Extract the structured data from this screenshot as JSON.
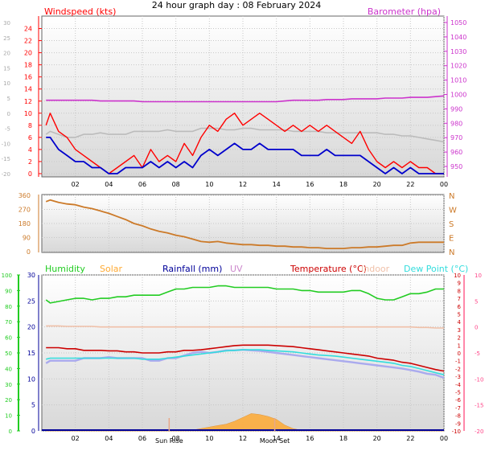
{
  "title": "24 hour graph day : 08 February 2024",
  "colors": {
    "windspeed": "#ff0000",
    "gust_avg": "#0000cc",
    "barometer": "#cc33cc",
    "wind_direction": "#cc7a29",
    "humidity": "#22cc22",
    "solar": "#ffaa33",
    "rainfall": "#000099",
    "uv": "#cc88cc",
    "temperature": "#cc0000",
    "indoor": "#f0c0a8",
    "dewpoint": "#33dddd",
    "feels": "#aaaaee",
    "extra_series": "#bbbbbb"
  },
  "chart_data": [
    {
      "type": "line",
      "legend": [
        "Windspeed (kts)",
        "Barometer (hpa)"
      ],
      "x_ticks": [
        "02",
        "04",
        "06",
        "08",
        "10",
        "12",
        "14",
        "16",
        "18",
        "20",
        "22",
        "00"
      ],
      "xlim": [
        0,
        24
      ],
      "left_far_ticks": [
        "30",
        "25",
        "20",
        "15",
        "10",
        "5",
        "0",
        "-5",
        "-10",
        "-15",
        "-20"
      ],
      "wind_ticks": [
        "24",
        "22",
        "20",
        "18",
        "16",
        "14",
        "12",
        "10",
        "8",
        "6",
        "4",
        "2",
        "0"
      ],
      "wind_ylim": [
        0,
        25
      ],
      "baro_ticks": [
        "1050",
        "1040",
        "1030",
        "1020",
        "1010",
        "1000",
        "990",
        "980",
        "970",
        "960",
        "950"
      ],
      "baro_ylim": [
        945,
        1050
      ],
      "x": [
        0.25,
        0.5,
        1,
        1.5,
        2,
        2.5,
        3,
        3.5,
        4,
        4.5,
        5,
        5.5,
        6,
        6.5,
        7,
        7.5,
        8,
        8.5,
        9,
        9.5,
        10,
        10.5,
        11,
        11.5,
        12,
        12.5,
        13,
        13.5,
        14,
        14.5,
        15,
        15.5,
        16,
        16.5,
        17,
        17.5,
        18,
        18.5,
        19,
        19.5,
        20,
        20.5,
        21,
        21.5,
        22,
        22.5,
        23,
        23.5,
        24
      ],
      "series": [
        {
          "name": "Windspeed (kts)",
          "values": [
            8,
            10,
            7,
            6,
            4,
            3,
            2,
            1,
            0,
            1,
            2,
            3,
            1,
            4,
            2,
            3,
            2,
            5,
            3,
            6,
            8,
            7,
            9,
            10,
            8,
            9,
            10,
            9,
            8,
            7,
            8,
            7,
            8,
            7,
            8,
            7,
            6,
            5,
            7,
            4,
            2,
            1,
            2,
            1,
            2,
            1,
            1,
            0,
            0
          ]
        },
        {
          "name": "gust average",
          "values": [
            6,
            6,
            4,
            3,
            2,
            2,
            1,
            1,
            0,
            0,
            1,
            1,
            1,
            2,
            1,
            2,
            1,
            2,
            1,
            3,
            4,
            3,
            4,
            5,
            4,
            4,
            5,
            4,
            4,
            4,
            4,
            3,
            3,
            3,
            4,
            3,
            3,
            3,
            3,
            2,
            1,
            0,
            1,
            0,
            1,
            0,
            0,
            0,
            0
          ]
        },
        {
          "name": "Barometer (hpa)",
          "values": [
            996,
            996,
            996,
            996,
            996,
            996,
            996,
            995.5,
            995.5,
            995.5,
            995.5,
            995.5,
            995,
            995,
            995,
            995,
            995,
            995,
            995,
            995,
            995,
            995,
            995,
            995,
            995,
            995,
            995,
            995,
            995,
            995.5,
            996,
            996,
            996,
            996,
            996.5,
            996.5,
            996.5,
            997,
            997,
            997,
            997,
            997.5,
            997.5,
            997.5,
            998,
            998,
            998,
            998.5,
            999
          ]
        },
        {
          "name": "extra",
          "values": [
            -7,
            -6,
            -7,
            -8,
            -8,
            -7,
            -7,
            -6.5,
            -7,
            -7,
            -7,
            -6,
            -6,
            -6,
            -6,
            -5.5,
            -6,
            -6,
            -6,
            -5,
            -5,
            -5,
            -5.5,
            -5.5,
            -5,
            -5,
            -5.5,
            -5.5,
            -5.5,
            -5.5,
            -6,
            -6,
            -6,
            -6,
            -6.5,
            -6.5,
            -6.5,
            -6.5,
            -6.5,
            -6.5,
            -6.5,
            -7,
            -7,
            -7.5,
            -7.5,
            -8,
            -8.5,
            -9,
            -9.5
          ]
        }
      ]
    },
    {
      "type": "line",
      "x_ticks": [
        "02",
        "04",
        "06",
        "08",
        "10",
        "12",
        "14",
        "16",
        "18",
        "20",
        "22",
        "00"
      ],
      "xlim": [
        0,
        24
      ],
      "ylim": [
        0,
        360
      ],
      "left_ticks": [
        "360",
        "270",
        "180",
        "90",
        "0"
      ],
      "right_ticks": [
        "N",
        "W",
        "S",
        "E",
        "N"
      ],
      "x": [
        0.25,
        0.5,
        1,
        1.5,
        2,
        2.5,
        3,
        3.5,
        4,
        4.5,
        5,
        5.5,
        6,
        6.5,
        7,
        7.5,
        8,
        8.5,
        9,
        9.5,
        10,
        10.5,
        11,
        11.5,
        12,
        12.5,
        13,
        13.5,
        14,
        14.5,
        15,
        15.5,
        16,
        16.5,
        17,
        17.5,
        18,
        18.5,
        19,
        19.5,
        20,
        20.5,
        21,
        21.5,
        22,
        22.5,
        23,
        23.5,
        24
      ],
      "series": [
        {
          "name": "wind direction",
          "values": [
            320,
            330,
            315,
            305,
            300,
            285,
            275,
            260,
            245,
            225,
            205,
            180,
            165,
            145,
            130,
            120,
            105,
            95,
            80,
            65,
            60,
            65,
            55,
            50,
            45,
            45,
            40,
            40,
            35,
            35,
            30,
            30,
            25,
            25,
            20,
            20,
            20,
            25,
            25,
            30,
            30,
            35,
            40,
            40,
            55,
            60,
            60,
            60,
            60
          ]
        }
      ]
    },
    {
      "type": "line",
      "legend": [
        "Humidity",
        "Solar",
        "Rainfall (mm)",
        "UV",
        "Temperature (°C)",
        "Indoor",
        "Dew Point (°C)"
      ],
      "x_ticks": [
        "02",
        "04",
        "06",
        "08",
        "10",
        "12",
        "14",
        "16",
        "18",
        "20",
        "22",
        "00"
      ],
      "xlim": [
        0,
        24
      ],
      "humidity_ticks": [
        "100",
        "90",
        "80",
        "70",
        "60",
        "50",
        "40",
        "30",
        "20",
        "10",
        "0"
      ],
      "humidity_ylim": [
        0,
        100
      ],
      "rain_ticks": [
        "30",
        "25",
        "20",
        "15",
        "10",
        "5",
        "0"
      ],
      "temp_ticks": [
        "10",
        "9",
        "8",
        "7",
        "6",
        "5",
        "4",
        "3",
        "2",
        "1",
        "0",
        "-1",
        "-2",
        "-3",
        "-4",
        "-5",
        "-6",
        "-7",
        "-8",
        "-9",
        "-10"
      ],
      "temp_ylim": [
        -20,
        10
      ],
      "temp_major_ticks": [
        "10",
        "5",
        "0",
        "-5",
        "-10",
        "-15",
        "-20"
      ],
      "x": [
        0.25,
        0.5,
        1,
        1.5,
        2,
        2.5,
        3,
        3.5,
        4,
        4.5,
        5,
        5.5,
        6,
        6.5,
        7,
        7.5,
        8,
        8.5,
        9,
        9.5,
        10,
        10.5,
        11,
        11.5,
        12,
        12.5,
        13,
        13.5,
        14,
        14.5,
        15,
        15.5,
        16,
        16.5,
        17,
        17.5,
        18,
        18.5,
        19,
        19.5,
        20,
        20.5,
        21,
        21.5,
        22,
        22.5,
        23,
        23.5,
        24
      ],
      "sun_events": [
        {
          "label": "Sun Rise",
          "x": 7.6
        },
        {
          "label": "Moon Set",
          "x": 13.9
        }
      ],
      "series": [
        {
          "name": "Humidity",
          "values": [
            84,
            82,
            83,
            84,
            85,
            85,
            84,
            85,
            85,
            86,
            86,
            87,
            87,
            87,
            87,
            89,
            91,
            91,
            92,
            92,
            92,
            93,
            93,
            92,
            92,
            92,
            92,
            92,
            91,
            91,
            91,
            90,
            90,
            89,
            89,
            89,
            89,
            90,
            90,
            88,
            85,
            84,
            84,
            86,
            88,
            88,
            89,
            91,
            91
          ]
        },
        {
          "name": "Temperature (°C)",
          "values": [
            -4,
            -4,
            -4,
            -4.2,
            -4.2,
            -4.5,
            -4.5,
            -4.5,
            -4.6,
            -4.6,
            -4.8,
            -4.8,
            -5,
            -5,
            -5,
            -4.8,
            -4.8,
            -4.5,
            -4.5,
            -4.4,
            -4.2,
            -4,
            -3.8,
            -3.6,
            -3.5,
            -3.5,
            -3.5,
            -3.5,
            -3.6,
            -3.7,
            -3.8,
            -4,
            -4.2,
            -4.4,
            -4.6,
            -4.8,
            -5,
            -5.2,
            -5.4,
            -5.6,
            -6,
            -6.2,
            -6.4,
            -6.8,
            -7,
            -7.4,
            -7.8,
            -8.2,
            -8.5
          ]
        },
        {
          "name": "Dew Point (°C)",
          "values": [
            -6.2,
            -6,
            -6,
            -6,
            -6,
            -6,
            -6,
            -6,
            -6,
            -6,
            -6,
            -6,
            -6.2,
            -6.2,
            -6.2,
            -6,
            -5.8,
            -5.6,
            -5.4,
            -5.2,
            -5,
            -4.8,
            -4.6,
            -4.5,
            -4.4,
            -4.4,
            -4.4,
            -4.5,
            -4.6,
            -4.7,
            -4.8,
            -5,
            -5.2,
            -5.4,
            -5.5,
            -5.6,
            -5.8,
            -6,
            -6.2,
            -6.4,
            -6.6,
            -6.8,
            -7,
            -7.4,
            -7.6,
            -8,
            -8.4,
            -8.8,
            -9.2
          ]
        },
        {
          "name": "feels like",
          "values": [
            -7,
            -6.5,
            -6.5,
            -6.5,
            -6.5,
            -6,
            -6,
            -6,
            -5.8,
            -6,
            -6,
            -6,
            -6,
            -6.5,
            -6.5,
            -6,
            -6,
            -5.5,
            -5,
            -4.8,
            -5,
            -4.8,
            -4.5,
            -4.5,
            -4.4,
            -4.5,
            -4.6,
            -4.8,
            -5,
            -5.2,
            -5.4,
            -5.6,
            -5.8,
            -6,
            -6.2,
            -6.4,
            -6.6,
            -6.8,
            -7,
            -7.2,
            -7.4,
            -7.6,
            -7.8,
            -8,
            -8.3,
            -8.6,
            -9,
            -9.2,
            -9.8
          ]
        },
        {
          "name": "Indoor",
          "values": [
            0.2,
            0.2,
            0.2,
            0.1,
            0.1,
            0.1,
            0.1,
            0,
            0,
            0,
            0,
            0,
            0,
            0,
            0,
            0,
            0,
            0,
            0,
            0,
            0,
            0,
            0,
            0,
            0,
            0,
            0,
            0,
            0,
            0,
            0,
            0,
            0,
            0,
            0,
            0,
            0,
            0,
            0,
            0,
            0,
            0,
            0,
            0,
            0,
            -0.1,
            -0.1,
            -0.2,
            -0.2
          ]
        },
        {
          "name": "Solar",
          "values": [
            0,
            0,
            0,
            0,
            0,
            0,
            0,
            0,
            0,
            0,
            0,
            0,
            0,
            0,
            0,
            0,
            0,
            0,
            0.4,
            1.2,
            2,
            2.8,
            3.5,
            5,
            7,
            9,
            8.5,
            7.5,
            6,
            3,
            1.2,
            0.3,
            0,
            0,
            0,
            0,
            0,
            0,
            0,
            0,
            0,
            0,
            0,
            0,
            0,
            0,
            0,
            0,
            0
          ]
        }
      ]
    }
  ]
}
